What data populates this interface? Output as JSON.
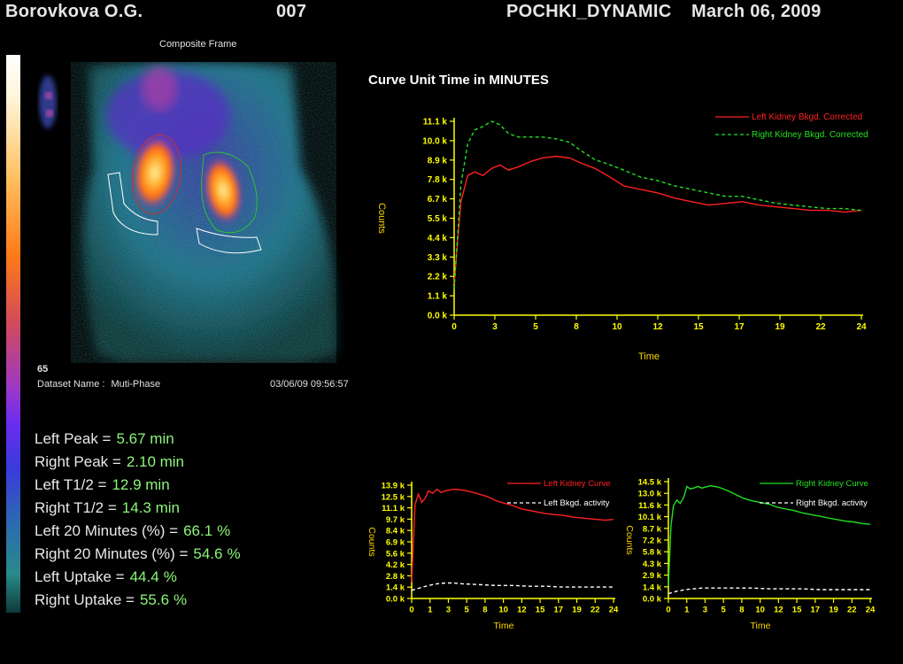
{
  "header": {
    "patient": "Borovkova  O.G.",
    "study_id": "007",
    "protocol": "POCHKI_DYNAMIC",
    "date": "March 06, 2009"
  },
  "image_panel": {
    "frame_title": "Composite Frame",
    "frame_number": "65",
    "dataset_label": "Dataset Name :",
    "dataset_value": "Muti-Phase",
    "timestamp": "03/06/09 09:56:57"
  },
  "stats": [
    {
      "label": "Left Peak =",
      "value": "5.67 min",
      "unit": ""
    },
    {
      "label": "Right Peak =",
      "value": "2.10 min",
      "unit": ""
    },
    {
      "label": "Left T1/2 =",
      "value": "12.9 min",
      "unit": ""
    },
    {
      "label": "Right T1/2 =",
      "value": "14.3 min",
      "unit": ""
    },
    {
      "label": "Left 20 Minutes (%) =",
      "value": "66.1",
      "unit": "%"
    },
    {
      "label": "Right 20 Minutes (%) =",
      "value": "54.6",
      "unit": "%"
    },
    {
      "label": "Left Uptake =",
      "value": "44.4",
      "unit": "%"
    },
    {
      "label": "Right Uptake =",
      "value": "55.6",
      "unit": "%"
    }
  ],
  "colors": {
    "left": "#ff2020",
    "right": "#22e022",
    "bkgd": "#ffffff",
    "axis": "#ffff00",
    "label": "#ffd700"
  },
  "chart_data": [
    {
      "id": "main",
      "type": "line",
      "title": "Curve Unit Time in MINUTES",
      "xlabel": "Time",
      "ylabel": "Counts",
      "xlim": [
        0,
        24
      ],
      "ylim": [
        0,
        11100
      ],
      "x_ticks": [
        "0",
        "3",
        "5",
        "8",
        "10",
        "12",
        "15",
        "17",
        "19",
        "22",
        "24"
      ],
      "y_ticks": [
        "0.0 k",
        "1.1 k",
        "2.2 k",
        "3.3 k",
        "4.4 k",
        "5.5 k",
        "6.7 k",
        "7.8 k",
        "8.9 k",
        "10.0 k",
        "11.1 k"
      ],
      "legend_position": "top-right",
      "series": [
        {
          "name": "Left Kidney Bkgd. Corrected",
          "style": "solid",
          "color": "#ff2020",
          "x": [
            0,
            0.4,
            0.8,
            1.2,
            1.7,
            2.2,
            2.7,
            3.2,
            3.8,
            4.5,
            5.2,
            6,
            6.8,
            7.5,
            8.3,
            9.2,
            10,
            11,
            12,
            13,
            14,
            15,
            16,
            17,
            18,
            19,
            20,
            21,
            22,
            23,
            24
          ],
          "y": [
            1800,
            6500,
            8000,
            8200,
            8000,
            8400,
            8600,
            8300,
            8500,
            8800,
            9000,
            9100,
            9000,
            8700,
            8400,
            7900,
            7400,
            7200,
            7000,
            6700,
            6500,
            6300,
            6400,
            6500,
            6300,
            6200,
            6100,
            6000,
            6000,
            5900,
            6000
          ]
        },
        {
          "name": "Right Kidney Bkgd. Corrected",
          "style": "dashed",
          "color": "#22e022",
          "x": [
            0,
            0.4,
            0.8,
            1.2,
            1.7,
            2.2,
            2.7,
            3.2,
            3.8,
            4.5,
            5.2,
            6,
            6.8,
            7.5,
            8.3,
            9.2,
            10,
            11,
            12,
            13,
            14,
            15,
            16,
            17,
            18,
            19,
            20,
            21,
            22,
            23,
            24
          ],
          "y": [
            1500,
            7500,
            9800,
            10600,
            10800,
            11100,
            10900,
            10400,
            10200,
            10200,
            10200,
            10100,
            9900,
            9400,
            8900,
            8600,
            8300,
            7900,
            7700,
            7400,
            7200,
            7000,
            6800,
            6800,
            6600,
            6400,
            6300,
            6200,
            6100,
            6100,
            6000
          ]
        }
      ]
    },
    {
      "id": "left",
      "type": "line",
      "title": "",
      "xlabel": "Time",
      "ylabel": "Counts",
      "xlim": [
        0,
        24
      ],
      "ylim": [
        0,
        13900
      ],
      "x_ticks": [
        "0",
        "1",
        "3",
        "5",
        "8",
        "10",
        "12",
        "15",
        "17",
        "19",
        "22",
        "24"
      ],
      "y_ticks": [
        "0.0 k",
        "1.4 k",
        "2.8 k",
        "4.2 k",
        "5.6 k",
        "6.9 k",
        "8.4 k",
        "9.7 k",
        "11.1 k",
        "12.5 k",
        "13.9 k"
      ],
      "legend_position": "top-right",
      "series": [
        {
          "name": "Left Kidney Curve",
          "style": "solid",
          "color": "#ff2020",
          "x": [
            0,
            0.4,
            0.8,
            1.2,
            1.6,
            2,
            2.5,
            3,
            3.5,
            4,
            5,
            6,
            7,
            8,
            9,
            10,
            11,
            12,
            13,
            14,
            15,
            16,
            17,
            18,
            19,
            20,
            21,
            22,
            23,
            24
          ],
          "y": [
            2000,
            11500,
            12800,
            11800,
            12300,
            13200,
            12900,
            13400,
            13000,
            13200,
            13400,
            13300,
            13100,
            12800,
            12500,
            12000,
            11700,
            11400,
            11000,
            10800,
            10600,
            10400,
            10300,
            10200,
            10000,
            9900,
            9800,
            9700,
            9600,
            9700
          ]
        },
        {
          "name": "Left Bkgd. activity",
          "style": "dashed",
          "color": "#ffffff",
          "x": [
            0,
            1,
            2,
            3,
            4,
            5,
            6,
            8,
            10,
            12,
            14,
            16,
            18,
            20,
            22,
            24
          ],
          "y": [
            1000,
            1300,
            1600,
            1800,
            1900,
            1900,
            1800,
            1700,
            1600,
            1600,
            1500,
            1500,
            1400,
            1400,
            1400,
            1400
          ]
        }
      ]
    },
    {
      "id": "right",
      "type": "line",
      "title": "",
      "xlabel": "Time",
      "ylabel": "Counts",
      "xlim": [
        0,
        24
      ],
      "ylim": [
        0,
        14500
      ],
      "x_ticks": [
        "0",
        "1",
        "3",
        "5",
        "8",
        "10",
        "12",
        "15",
        "17",
        "19",
        "22",
        "24"
      ],
      "y_ticks": [
        "0.0 k",
        "1.4 k",
        "2.9 k",
        "4.3 k",
        "5.8 k",
        "7.2 k",
        "8.7 k",
        "10.1 k",
        "11.6 k",
        "13.0 k",
        "14.5 k"
      ],
      "legend_position": "top-right",
      "series": [
        {
          "name": "Right Kidney Curve",
          "style": "solid",
          "color": "#22e022",
          "x": [
            0,
            0.3,
            0.6,
            1,
            1.4,
            1.8,
            2.2,
            2.6,
            3,
            3.5,
            4,
            5,
            6,
            7,
            8,
            9,
            10,
            11,
            12,
            13,
            14,
            15,
            16,
            17,
            18,
            19,
            20,
            21,
            22,
            23,
            24
          ],
          "y": [
            1500,
            9000,
            11500,
            12200,
            11800,
            12500,
            13900,
            13600,
            13700,
            13900,
            13700,
            14000,
            13800,
            13400,
            12900,
            12400,
            12100,
            11900,
            11700,
            11300,
            11100,
            10900,
            10600,
            10400,
            10200,
            10000,
            9800,
            9600,
            9500,
            9300,
            9200
          ]
        },
        {
          "name": "Right Bkgd. activity",
          "style": "dashed",
          "color": "#ffffff",
          "x": [
            0,
            1,
            2,
            3,
            4,
            5,
            6,
            8,
            10,
            12,
            14,
            16,
            18,
            20,
            22,
            24
          ],
          "y": [
            600,
            900,
            1100,
            1200,
            1300,
            1300,
            1300,
            1300,
            1300,
            1200,
            1200,
            1200,
            1100,
            1100,
            1100,
            1100
          ]
        }
      ]
    }
  ]
}
